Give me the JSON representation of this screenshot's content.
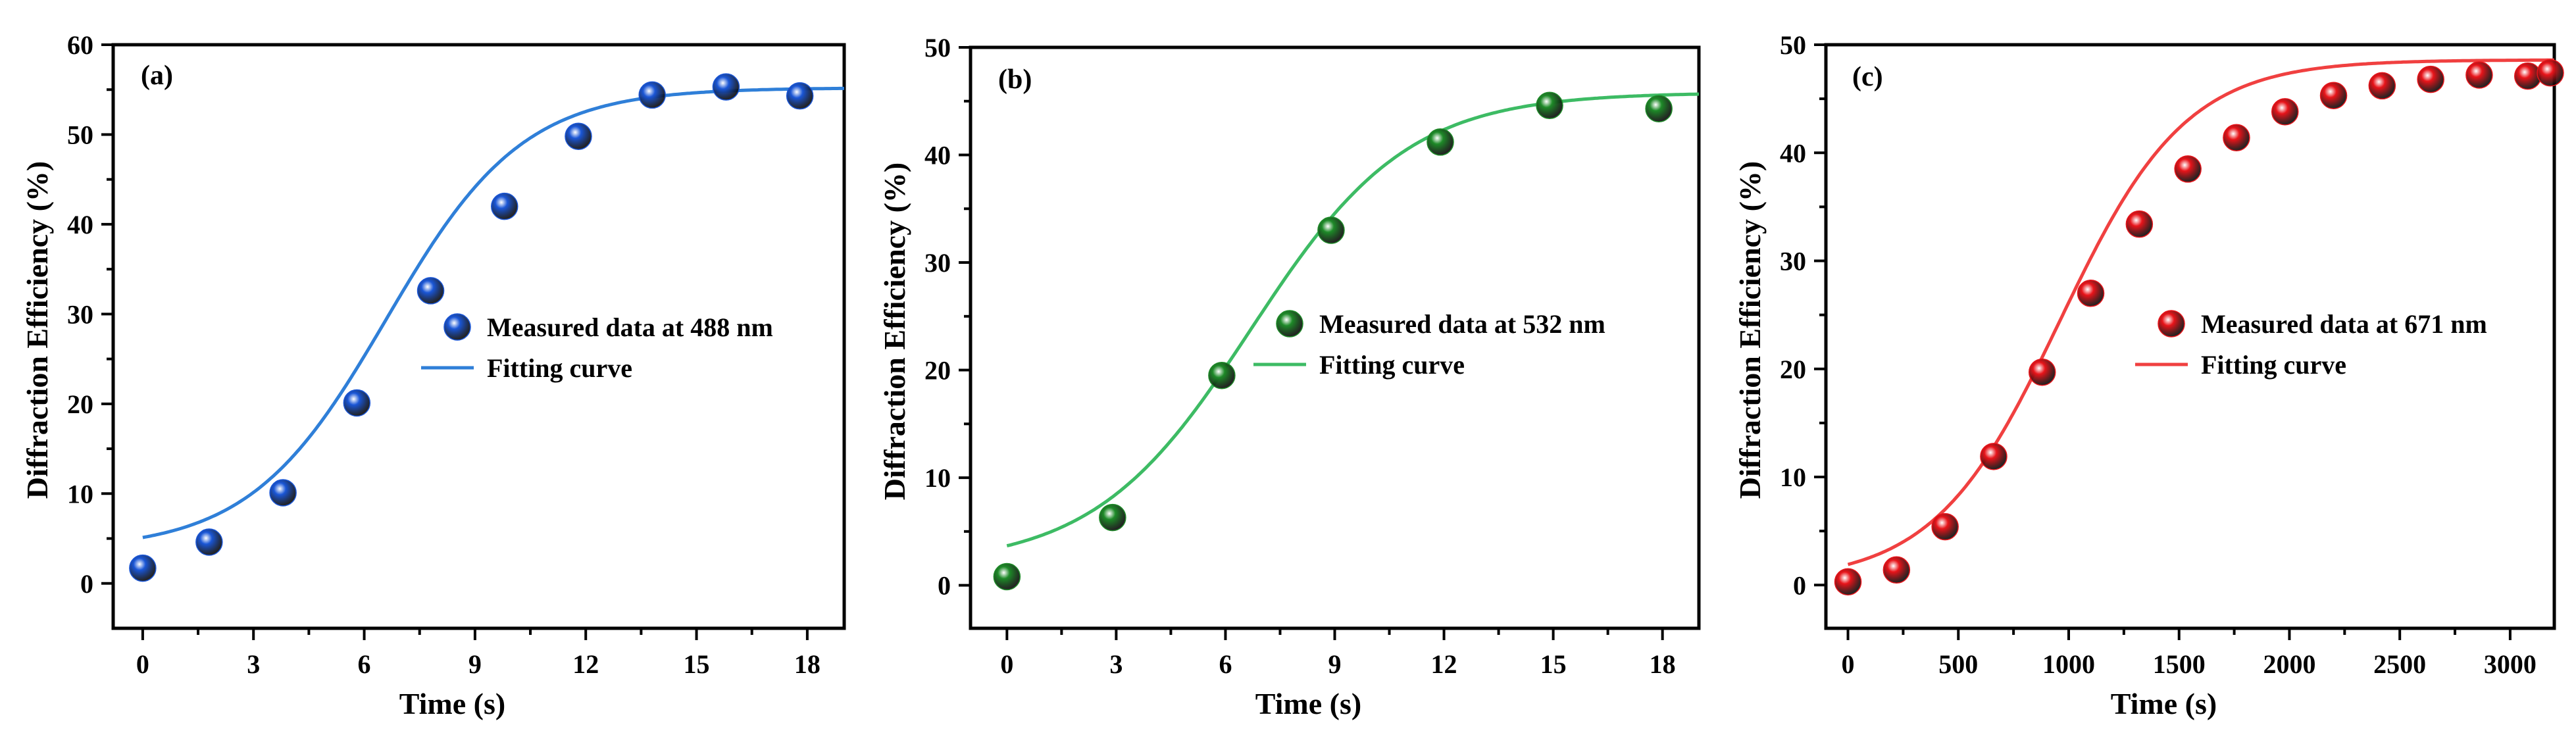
{
  "chart_data": [
    {
      "type": "scatter",
      "panel_label": "(a)",
      "xlabel": "Time (s)",
      "ylabel": "Diffraction Efficiency (%)",
      "xlim": [
        -0.8,
        19
      ],
      "ylim": [
        -5,
        60
      ],
      "xticks": [
        0,
        3,
        6,
        9,
        12,
        15,
        18
      ],
      "yticks": [
        0,
        10,
        20,
        30,
        40,
        50,
        60
      ],
      "color": "#1a56d6",
      "line_color": "#2f7fd8",
      "legend": {
        "marker_label": "Measured data at 488 nm",
        "line_label": "Fitting curve",
        "position": "center-right"
      },
      "series": [
        {
          "name": "Measured data at 488 nm",
          "x": [
            0,
            1.8,
            3.8,
            5.8,
            7.8,
            9.8,
            11.8,
            13.8,
            15.8,
            17.8
          ],
          "y": [
            1.7,
            4.6,
            10.1,
            20.1,
            32.6,
            42.0,
            49.8,
            54.4,
            55.3,
            54.3
          ]
        },
        {
          "name": "Fitting curve",
          "model": "boltzmann",
          "A1": 3.7,
          "A2": 55.2,
          "x0": 6.6,
          "dx": 1.85,
          "x_range": [
            0,
            19
          ]
        }
      ]
    },
    {
      "type": "scatter",
      "panel_label": "(b)",
      "xlabel": "Time (s)",
      "ylabel": "Diffraction Efficiency (%)",
      "xlim": [
        -1,
        19
      ],
      "ylim": [
        -4,
        50
      ],
      "xticks": [
        0,
        3,
        6,
        9,
        12,
        15,
        18
      ],
      "yticks": [
        0,
        10,
        20,
        30,
        40,
        50
      ],
      "color": "#1e8a28",
      "line_color": "#3dbb64",
      "legend": {
        "marker_label": "Measured data at 532 nm",
        "line_label": "Fitting curve",
        "position": "center-right"
      },
      "series": [
        {
          "name": "Measured data at 532 nm",
          "x": [
            0,
            2.9,
            5.9,
            8.9,
            11.9,
            14.9,
            17.9
          ],
          "y": [
            0.8,
            6.3,
            19.5,
            33.0,
            41.2,
            44.6,
            44.3
          ]
        },
        {
          "name": "Fitting curve",
          "model": "boltzmann",
          "A1": 1.8,
          "A2": 45.8,
          "x0": 6.7,
          "dx": 2.15,
          "x_range": [
            0,
            19
          ]
        }
      ]
    },
    {
      "type": "scatter",
      "panel_label": "(c)",
      "xlabel": "Time (s)",
      "ylabel": "Diffraction Efficiency (%)",
      "xlim": [
        -100,
        3200
      ],
      "ylim": [
        -4,
        50
      ],
      "xticks": [
        0,
        500,
        1000,
        1500,
        2000,
        2500,
        3000
      ],
      "yticks": [
        0,
        10,
        20,
        30,
        40,
        50
      ],
      "color": "#e8141a",
      "line_color": "#f04040",
      "legend": {
        "marker_label": "Measured data at 671 nm",
        "line_label": "Fitting curve",
        "position": "center-right"
      },
      "series": [
        {
          "name": "Measured data at 671 nm",
          "x": [
            0,
            220,
            440,
            660,
            880,
            1100,
            1320,
            1540,
            1760,
            1980,
            2200,
            2420,
            2640,
            2860,
            3080,
            3200
          ],
          "y": [
            0.3,
            1.4,
            5.4,
            11.9,
            19.7,
            27.0,
            33.4,
            38.5,
            41.4,
            43.8,
            45.3,
            46.2,
            46.8,
            47.2,
            47.1,
            47.4
          ]
        },
        {
          "name": "Fitting curve",
          "model": "boltzmann",
          "A1": 0.3,
          "A2": 48.6,
          "x0": 960,
          "dx": 285,
          "x_range": [
            0,
            3200
          ]
        }
      ]
    }
  ]
}
